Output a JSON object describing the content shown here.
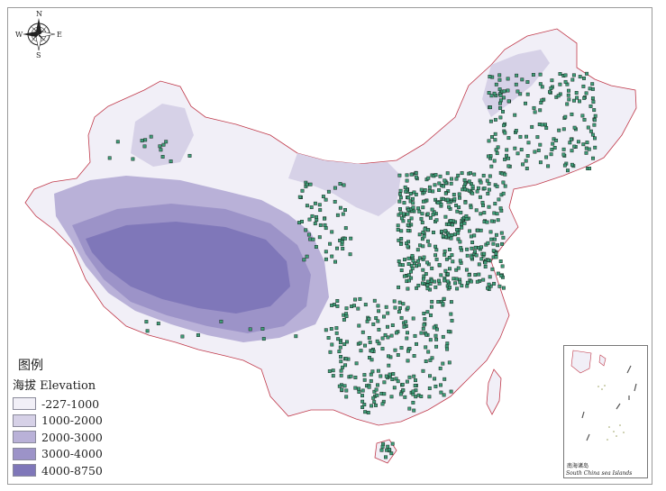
{
  "compass": {
    "north": "N",
    "south": "S",
    "east": "E",
    "west": "W"
  },
  "legend": {
    "title": "图例",
    "subtitle": "海拔 Elevation",
    "items": [
      {
        "label": "-227-1000",
        "color": "#f1eff7"
      },
      {
        "label": "1000-2000",
        "color": "#d6d1e7"
      },
      {
        "label": "2000-3000",
        "color": "#b9b1d8"
      },
      {
        "label": "3000-4000",
        "color": "#9c93c8"
      },
      {
        "label": "4000-8750",
        "color": "#7f77b9"
      }
    ]
  },
  "inset": {
    "caption_cn": "南海诸岛",
    "caption_en": "South China sea Islands"
  },
  "colors": {
    "station_fill": "#3e9d78",
    "station_stroke": "#1a2a22",
    "border_red": "#c0394a"
  }
}
